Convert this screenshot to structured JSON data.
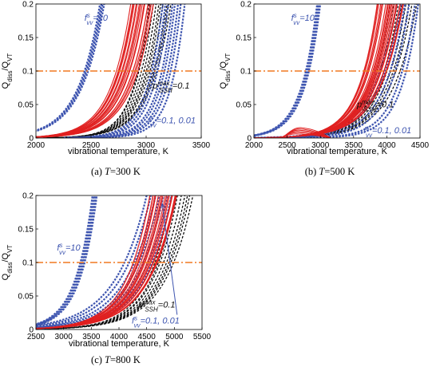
{
  "figure": {
    "shared_xlabel": "vibrational temperature, K",
    "shared_ylabel": "Q_diss/Q_VT"
  },
  "colors": {
    "red_family": "#e02020",
    "black_family": "#111111",
    "blue_family": "#3e55b0",
    "threshold": "#f07820",
    "annotation_blue": "#3e55b0"
  },
  "chart_data": [
    {
      "type": "line",
      "caption": "(a) T=300 K",
      "caption_parts": {
        "prefix": "(a) ",
        "var": "T",
        "rest": "=300 K"
      },
      "xlabel": "vibrational temperature, K",
      "ylabel": "Q_diss/Q_VT",
      "xlim": [
        2000,
        3500
      ],
      "ylim": [
        0,
        0.2
      ],
      "xticks": [
        "2000",
        "2500",
        "3000",
        "3500"
      ],
      "yticks": [
        "0",
        "0.05",
        "0.1",
        "0.15",
        "0.2"
      ],
      "threshold_y": 0.1,
      "series": [
        {
          "style": "red-solid",
          "count": 18,
          "x_at_y01": [
            2730,
            2930
          ],
          "x_at_y02": [
            2860,
            3070
          ],
          "exponent": 0.19
        },
        {
          "style": "black-dashed",
          "count": 10,
          "x_at_y01": [
            2920,
            3100
          ],
          "x_at_y02": [
            3020,
            3230
          ],
          "exponent": 0.19
        },
        {
          "style": "blue-dashed",
          "count": 8,
          "x_at_y01": [
            3050,
            3260
          ],
          "x_at_y02": [
            3150,
            3350
          ],
          "exponent": 0.19
        },
        {
          "style": "blue-dashed-left",
          "count": 4,
          "x_at_y01": [
            2440,
            2475
          ],
          "x_at_y02": [
            2580,
            2620
          ],
          "exponent": 0.19
        }
      ],
      "annotations": [
        {
          "prefix": "f",
          "sup": "s",
          "sub": "vv",
          "suffix": "=10",
          "color": "blue",
          "x": 2440,
          "y": 0.175
        },
        {
          "prefix": "p",
          "sup": "max",
          "sub": "SSH",
          "suffix": "=0.1",
          "color": "black",
          "x": 3060,
          "y": 0.074
        },
        {
          "prefix": "f",
          "sup": "s",
          "sub": "vv",
          "suffix": "=0.1, 0.01",
          "color": "blue",
          "x": 3015,
          "y": 0.022
        }
      ]
    },
    {
      "type": "line",
      "caption": "(b) T=500 K",
      "caption_parts": {
        "prefix": "(b) ",
        "var": "T",
        "rest": "=500 K"
      },
      "xlabel": "vibrational temperature, K",
      "ylabel": "Q_diss/Q_VT",
      "xlim": [
        2000,
        4500
      ],
      "ylim": [
        0,
        0.2
      ],
      "xticks": [
        "2000",
        "2500",
        "3000",
        "3500",
        "4000",
        "4500"
      ],
      "yticks": [
        "0",
        "0.05",
        "0.1",
        "0.15",
        "0.2"
      ],
      "threshold_y": 0.1,
      "series": [
        {
          "style": "red-solid",
          "count": 20,
          "x_at_y01": [
            3650,
            4000
          ],
          "x_at_y02": [
            3850,
            4250
          ],
          "exponent": 0.2
        },
        {
          "style": "black-dashed",
          "count": 8,
          "x_at_y01": [
            3850,
            4200
          ],
          "x_at_y02": [
            4050,
            4450
          ],
          "exponent": 0.2
        },
        {
          "style": "blue-dashed",
          "count": 6,
          "x_at_y01": [
            3900,
            4300
          ],
          "x_at_y02": [
            4150,
            4480
          ],
          "exponent": 0.2
        },
        {
          "style": "blue-dashed-left",
          "count": 4,
          "x_at_y01": [
            2780,
            2830
          ],
          "x_at_y02": [
            2950,
            3000
          ],
          "exponent": 0.2
        }
      ],
      "bumps": {
        "x_range": [
          2400,
          3150
        ],
        "peak_x": 2700,
        "peak_y": [
          0.006,
          0.015
        ],
        "count": 6
      },
      "annotations": [
        {
          "prefix": "f",
          "sup": "s",
          "sub": "vv",
          "suffix": "=10",
          "color": "blue",
          "x": 2560,
          "y": 0.175
        },
        {
          "prefix": "p",
          "sup": "max",
          "sub": "SSH",
          "suffix": "=0.1",
          "color": "black",
          "x": 3550,
          "y": 0.046
        },
        {
          "prefix": "f",
          "sup": "s",
          "sub": "vv",
          "suffix": "=0.1, 0.01",
          "color": "blue",
          "x": 3650,
          "y": 0.007
        }
      ]
    },
    {
      "type": "line",
      "caption": "(c) T=800 K",
      "caption_parts": {
        "prefix": "(c) ",
        "var": "T",
        "rest": "=800 K"
      },
      "xlabel": "vibrational temperature, K",
      "ylabel": "Q_diss/Q_VT",
      "xlim": [
        2500,
        5500
      ],
      "ylim": [
        0,
        0.2
      ],
      "xticks": [
        "2500",
        "3000",
        "3500",
        "4000",
        "4500",
        "5000",
        "5500"
      ],
      "yticks": [
        "0",
        "0.05",
        "0.1",
        "0.15",
        "0.2"
      ],
      "threshold_y": 0.1,
      "series": [
        {
          "style": "red-solid",
          "count": 20,
          "x_at_y01": [
            4250,
            4700
          ],
          "x_at_y02": [
            4550,
            5050
          ],
          "exponent": 0.2
        },
        {
          "style": "black-dashed",
          "count": 8,
          "x_at_y01": [
            4650,
            5000
          ],
          "x_at_y02": [
            4950,
            5350
          ],
          "exponent": 0.2
        },
        {
          "style": "blue-dashed",
          "count": 7,
          "x_at_y01": [
            4100,
            4600
          ],
          "x_at_y02": [
            4500,
            4950
          ],
          "exponent": 0.2
        },
        {
          "style": "blue-dashed-left",
          "count": 4,
          "x_at_y01": [
            3300,
            3380
          ],
          "x_at_y02": [
            3520,
            3600
          ],
          "exponent": 0.2
        }
      ],
      "annotations": [
        {
          "prefix": "f",
          "sup": "s",
          "sub": "vv",
          "suffix": "=10",
          "color": "blue",
          "x": 2880,
          "y": 0.118
        },
        {
          "prefix": "p",
          "sup": "max",
          "sub": "SSH",
          "suffix": "=0.1",
          "color": "black",
          "x": 4350,
          "y": 0.033
        },
        {
          "prefix": "f",
          "sup": "s",
          "sub": "vv",
          "suffix": "=0.1, 0.01",
          "color": "blue",
          "x": 4230,
          "y": 0.009
        }
      ],
      "arrow": {
        "from": [
          5050,
          0.022
        ],
        "to": [
          4780,
          0.188
        ]
      }
    }
  ]
}
